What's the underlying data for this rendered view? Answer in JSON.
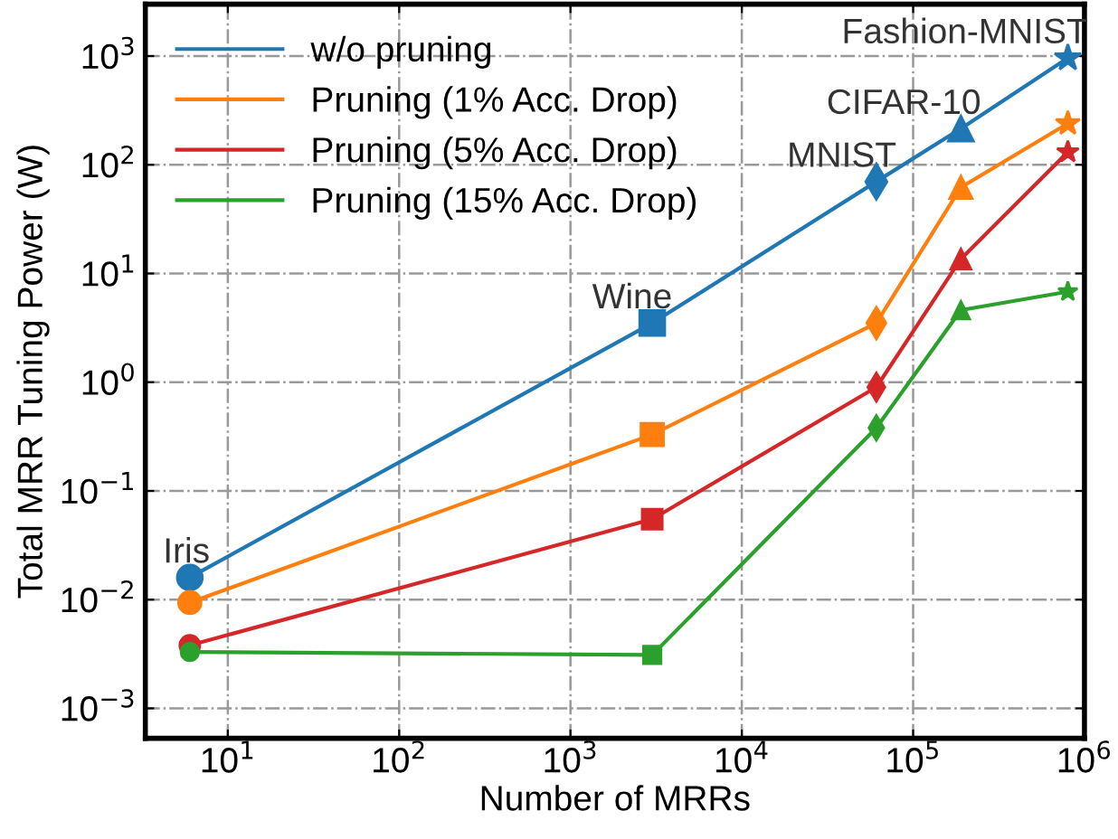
{
  "chart_data": {
    "type": "line",
    "xlabel": "Number of MRRs",
    "ylabel": "Total MRR Tuning Power (W)",
    "x": [
      6,
      3000,
      61000,
      190000,
      800000
    ],
    "series": [
      {
        "name": "w/o pruning",
        "color": "#1f77b4",
        "values": [
          0.016,
          3.5,
          70,
          215,
          960
        ]
      },
      {
        "name": "Pruning (1% Acc. Drop)",
        "color": "#ff7f0e",
        "values": [
          0.0094,
          0.33,
          3.5,
          62,
          240
        ]
      },
      {
        "name": "Pruning (5% Acc. Drop)",
        "color": "#d62728",
        "values": [
          0.0038,
          0.055,
          0.9,
          13.6,
          131
        ]
      },
      {
        "name": "Pruning (15% Acc. Drop)",
        "color": "#2ca02c",
        "values": [
          0.0033,
          0.0031,
          0.38,
          4.6,
          6.8
        ]
      }
    ],
    "annotations": [
      {
        "text": "Iris",
        "x": 6,
        "y": 0.016
      },
      {
        "text": "Wine",
        "x": 3000,
        "y": 3.5
      },
      {
        "text": "MNIST",
        "x": 61000,
        "y": 70
      },
      {
        "text": "CIFAR-10",
        "x": 190000,
        "y": 215
      },
      {
        "text": "Fashion-MNIST",
        "x": 800000,
        "y": 960
      }
    ],
    "log": "xy",
    "xlim": [
      3.3,
      1000000
    ],
    "ylim": [
      0.00053,
      3000
    ],
    "xticks": [
      {
        "value": 10,
        "label": "10$^{1}$"
      },
      {
        "value": 100,
        "label": "10$^{2}$"
      },
      {
        "value": 1000,
        "label": "10$^{3}$"
      },
      {
        "value": 10000,
        "label": "10$^{4}$"
      },
      {
        "value": 100000,
        "label": "10$^{5}$"
      },
      {
        "value": 1000000,
        "label": "10$^{6}$"
      }
    ],
    "yticks": [
      {
        "value": 0.001,
        "label": "10$^{−3}$"
      },
      {
        "value": 0.01,
        "label": "10$^{−2}$"
      },
      {
        "value": 0.1,
        "label": "10$^{−1}$"
      },
      {
        "value": 1,
        "label": "10$^{0}$"
      },
      {
        "value": 10,
        "label": "10$^{1}$"
      },
      {
        "value": 100,
        "label": "10$^{2}$"
      },
      {
        "value": 1000,
        "label": "10$^{3}$"
      }
    ],
    "marker": [
      "circle",
      "square",
      "diamond",
      "triangle",
      "star"
    ],
    "grid": true,
    "legend": "top left",
    "line_style": "solid"
  }
}
